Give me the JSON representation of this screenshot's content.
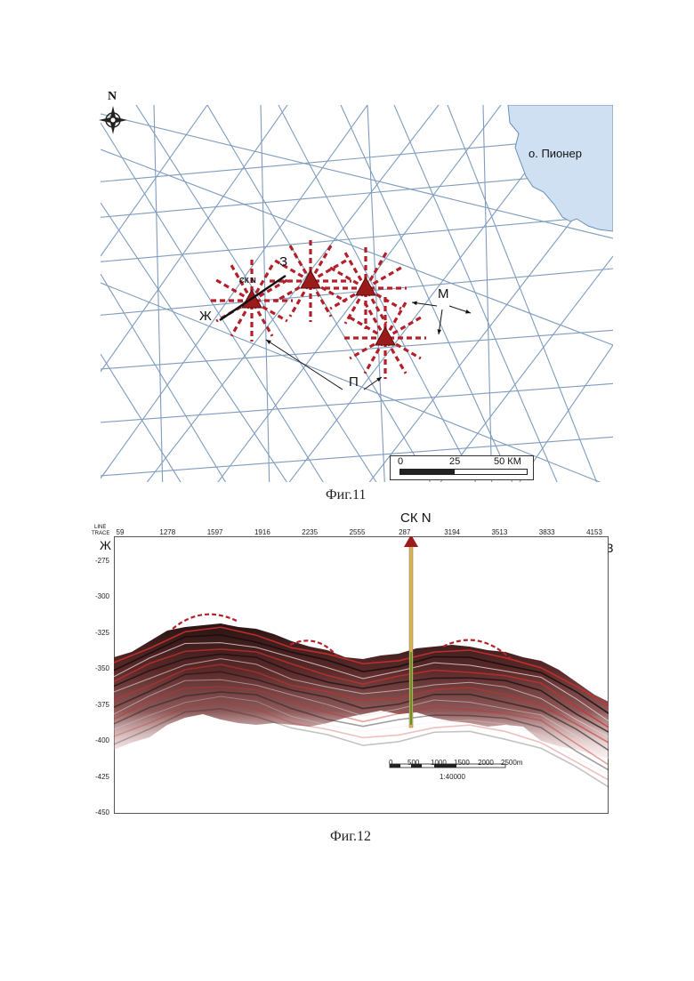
{
  "fig11": {
    "caption": "Фиг.11",
    "north_label": "N",
    "island_label": "о. Пионер",
    "label_Z": "З",
    "label_Zh": "Ж",
    "label_M": "М",
    "label_P": "П",
    "well_label": "СК N",
    "scale": {
      "v0": "0",
      "v25": "25",
      "v50": "50 КМ"
    }
  },
  "fig12": {
    "caption": "Фиг.12",
    "line_label": "LINE",
    "trace_label": "TRACE",
    "well_label": "СК N",
    "left_label": "Ж",
    "right_label": "З",
    "trace_ticks": [
      "59",
      "1278",
      "1597",
      "1916",
      "2235",
      "2555",
      "287",
      "3194",
      "3513",
      "3833",
      "4153"
    ],
    "depth_ticks": [
      "-275",
      "-300",
      "-325",
      "-350",
      "-375",
      "-400",
      "-425",
      "-450"
    ],
    "scale": {
      "t0": "0",
      "t500": "500",
      "t1000": "1000",
      "t1500": "1500",
      "t2000": "2000",
      "t2500": "2500m",
      "ratio": "1:40000"
    }
  },
  "colors": {
    "line_blue": "#7f9cbf",
    "well_red": "#9b1b1b",
    "dash_red": "#b3202a",
    "island_blue": "#cfe0f2"
  }
}
